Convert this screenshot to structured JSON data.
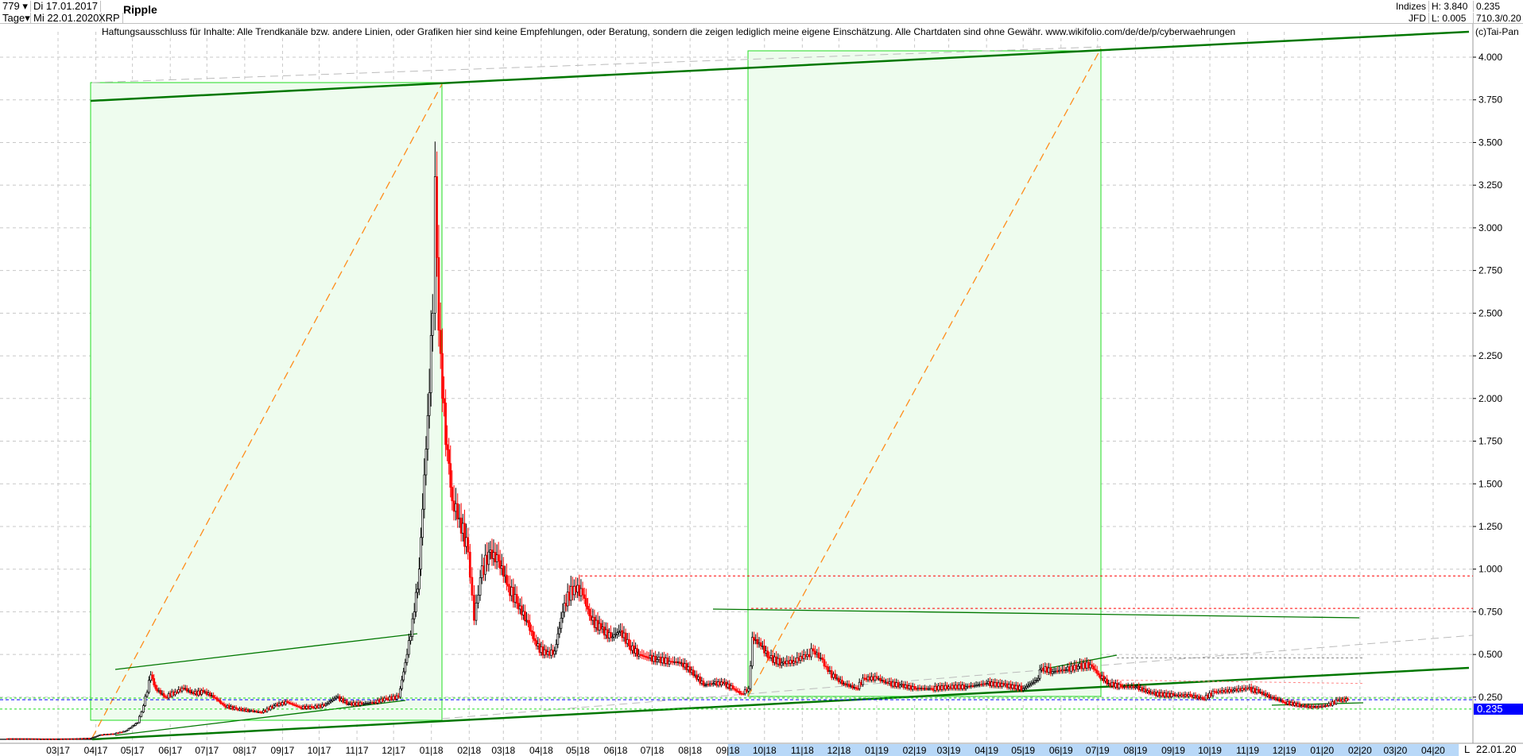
{
  "header": {
    "period_count": "779",
    "period_unit": "Tage",
    "date_from": "Di 17.01.2017",
    "date_to": "Mi 22.01.2020",
    "symbol": "XRP",
    "title": "Ripple",
    "group": "Indizes",
    "source": "JFD",
    "high": "H: 3.840",
    "low": "L: 0.005",
    "last": "0.235",
    "extra": "710.3/0.20"
  },
  "disclaimer": "Haftungsausschluss für Inhalte: Alle Trendkanäle bzw. andere Linien, oder Grafiken hier sind keine Empfehlungen, oder Beratung, sondern die zeigen lediglich meine eigene Einschätzung. Alle Chartdaten sind ohne Gewähr.  www.wikifolio.com/de/de/p/cyberwaehrungen",
  "copyright": "(c)Tai-Pan",
  "last_price_label": "0.235",
  "axis_end_marker": "L",
  "axis_end_date": "22.01.20",
  "colors": {
    "up": "#000000",
    "down": "#ff0000",
    "box_fill": "#eefcee",
    "box_border": "#22dd22",
    "trend": "#007700",
    "orange": "#ff8c1a",
    "last": "#0000ff",
    "axis_highlight": "#b8d8f8"
  },
  "chart_data": {
    "type": "candlestick",
    "title": "Ripple",
    "ylim": [
      0,
      4.0
    ],
    "y_ticks": [
      "0.250",
      "0.500",
      "0.750",
      "1.000",
      "1.250",
      "1.500",
      "1.750",
      "2.000",
      "2.250",
      "2.500",
      "2.750",
      "3.000",
      "3.250",
      "3.500",
      "3.750",
      "4.000"
    ],
    "x_ticks": [
      "03|17",
      "04|17",
      "05|17",
      "06|17",
      "07|17",
      "08|17",
      "09|17",
      "10|17",
      "11|17",
      "12|17",
      "01|18",
      "02|18",
      "03|18",
      "04|18",
      "05|18",
      "06|18",
      "07|18",
      "08|18",
      "09|18",
      "10|18",
      "11|18",
      "12|18",
      "01|19",
      "02|19",
      "03|19",
      "04|19",
      "05|19",
      "06|19",
      "07|19",
      "08|19",
      "09|19",
      "10|19",
      "11|19",
      "12|19",
      "01|20",
      "02|20",
      "03|20",
      "04|20"
    ],
    "grid": true,
    "series": [
      [
        "2017-01-17",
        0.007
      ],
      [
        "2017-02-01",
        0.007
      ],
      [
        "2017-02-15",
        0.006
      ],
      [
        "2017-03-01",
        0.006
      ],
      [
        "2017-03-15",
        0.007
      ],
      [
        "2017-03-28",
        0.01
      ],
      [
        "2017-04-05",
        0.03
      ],
      [
        "2017-04-15",
        0.035
      ],
      [
        "2017-04-25",
        0.05
      ],
      [
        "2017-05-05",
        0.1
      ],
      [
        "2017-05-10",
        0.2
      ],
      [
        "2017-05-16",
        0.38
      ],
      [
        "2017-05-20",
        0.3
      ],
      [
        "2017-05-28",
        0.25
      ],
      [
        "2017-06-05",
        0.28
      ],
      [
        "2017-06-12",
        0.3
      ],
      [
        "2017-06-20",
        0.27
      ],
      [
        "2017-06-28",
        0.28
      ],
      [
        "2017-07-05",
        0.26
      ],
      [
        "2017-07-15",
        0.2
      ],
      [
        "2017-07-25",
        0.18
      ],
      [
        "2017-08-05",
        0.17
      ],
      [
        "2017-08-15",
        0.16
      ],
      [
        "2017-08-25",
        0.2
      ],
      [
        "2017-09-05",
        0.22
      ],
      [
        "2017-09-15",
        0.19
      ],
      [
        "2017-09-25",
        0.19
      ],
      [
        "2017-10-05",
        0.2
      ],
      [
        "2017-10-15",
        0.25
      ],
      [
        "2017-10-25",
        0.21
      ],
      [
        "2017-11-05",
        0.21
      ],
      [
        "2017-11-15",
        0.22
      ],
      [
        "2017-11-25",
        0.24
      ],
      [
        "2017-12-05",
        0.25
      ],
      [
        "2017-12-12",
        0.5
      ],
      [
        "2017-12-18",
        0.75
      ],
      [
        "2017-12-22",
        1.0
      ],
      [
        "2017-12-29",
        1.9
      ],
      [
        "2018-01-02",
        2.5
      ],
      [
        "2018-01-04",
        3.3
      ],
      [
        "2018-01-07",
        2.4
      ],
      [
        "2018-01-10",
        2.0
      ],
      [
        "2018-01-14",
        1.7
      ],
      [
        "2018-01-18",
        1.4
      ],
      [
        "2018-01-24",
        1.3
      ],
      [
        "2018-01-31",
        1.1
      ],
      [
        "2018-02-05",
        0.7
      ],
      [
        "2018-02-10",
        0.95
      ],
      [
        "2018-02-17",
        1.1
      ],
      [
        "2018-02-25",
        1.05
      ],
      [
        "2018-03-05",
        0.9
      ],
      [
        "2018-03-12",
        0.8
      ],
      [
        "2018-03-20",
        0.7
      ],
      [
        "2018-03-28",
        0.55
      ],
      [
        "2018-04-05",
        0.5
      ],
      [
        "2018-04-12",
        0.52
      ],
      [
        "2018-04-20",
        0.8
      ],
      [
        "2018-04-28",
        0.9
      ],
      [
        "2018-05-05",
        0.85
      ],
      [
        "2018-05-12",
        0.7
      ],
      [
        "2018-05-20",
        0.65
      ],
      [
        "2018-05-28",
        0.6
      ],
      [
        "2018-06-05",
        0.64
      ],
      [
        "2018-06-12",
        0.55
      ],
      [
        "2018-06-20",
        0.5
      ],
      [
        "2018-06-28",
        0.48
      ],
      [
        "2018-07-05",
        0.47
      ],
      [
        "2018-07-15",
        0.46
      ],
      [
        "2018-07-25",
        0.45
      ],
      [
        "2018-08-05",
        0.38
      ],
      [
        "2018-08-12",
        0.32
      ],
      [
        "2018-08-20",
        0.33
      ],
      [
        "2018-08-28",
        0.33
      ],
      [
        "2018-09-05",
        0.3
      ],
      [
        "2018-09-12",
        0.27
      ],
      [
        "2018-09-18",
        0.3
      ],
      [
        "2018-09-21",
        0.6
      ],
      [
        "2018-09-28",
        0.55
      ],
      [
        "2018-10-05",
        0.48
      ],
      [
        "2018-10-15",
        0.45
      ],
      [
        "2018-10-25",
        0.46
      ],
      [
        "2018-11-05",
        0.5
      ],
      [
        "2018-11-10",
        0.52
      ],
      [
        "2018-11-16",
        0.48
      ],
      [
        "2018-11-22",
        0.4
      ],
      [
        "2018-11-28",
        0.36
      ],
      [
        "2018-12-05",
        0.33
      ],
      [
        "2018-12-15",
        0.3
      ],
      [
        "2018-12-22",
        0.36
      ],
      [
        "2019-01-01",
        0.36
      ],
      [
        "2019-01-10",
        0.33
      ],
      [
        "2019-01-20",
        0.32
      ],
      [
        "2019-02-01",
        0.3
      ],
      [
        "2019-02-15",
        0.3
      ],
      [
        "2019-03-01",
        0.31
      ],
      [
        "2019-03-15",
        0.31
      ],
      [
        "2019-04-01",
        0.33
      ],
      [
        "2019-04-15",
        0.32
      ],
      [
        "2019-05-01",
        0.3
      ],
      [
        "2019-05-12",
        0.35
      ],
      [
        "2019-05-16",
        0.42
      ],
      [
        "2019-05-25",
        0.4
      ],
      [
        "2019-06-05",
        0.41
      ],
      [
        "2019-06-15",
        0.43
      ],
      [
        "2019-06-25",
        0.44
      ],
      [
        "2019-07-02",
        0.38
      ],
      [
        "2019-07-10",
        0.33
      ],
      [
        "2019-07-20",
        0.31
      ],
      [
        "2019-08-01",
        0.31
      ],
      [
        "2019-08-15",
        0.27
      ],
      [
        "2019-09-01",
        0.26
      ],
      [
        "2019-09-15",
        0.26
      ],
      [
        "2019-09-25",
        0.24
      ],
      [
        "2019-10-05",
        0.28
      ],
      [
        "2019-10-20",
        0.29
      ],
      [
        "2019-11-01",
        0.3
      ],
      [
        "2019-11-10",
        0.28
      ],
      [
        "2019-11-20",
        0.25
      ],
      [
        "2019-12-01",
        0.22
      ],
      [
        "2019-12-15",
        0.2
      ],
      [
        "2019-12-25",
        0.19
      ],
      [
        "2020-01-05",
        0.2
      ],
      [
        "2020-01-14",
        0.23
      ],
      [
        "2020-01-22",
        0.235
      ]
    ]
  }
}
